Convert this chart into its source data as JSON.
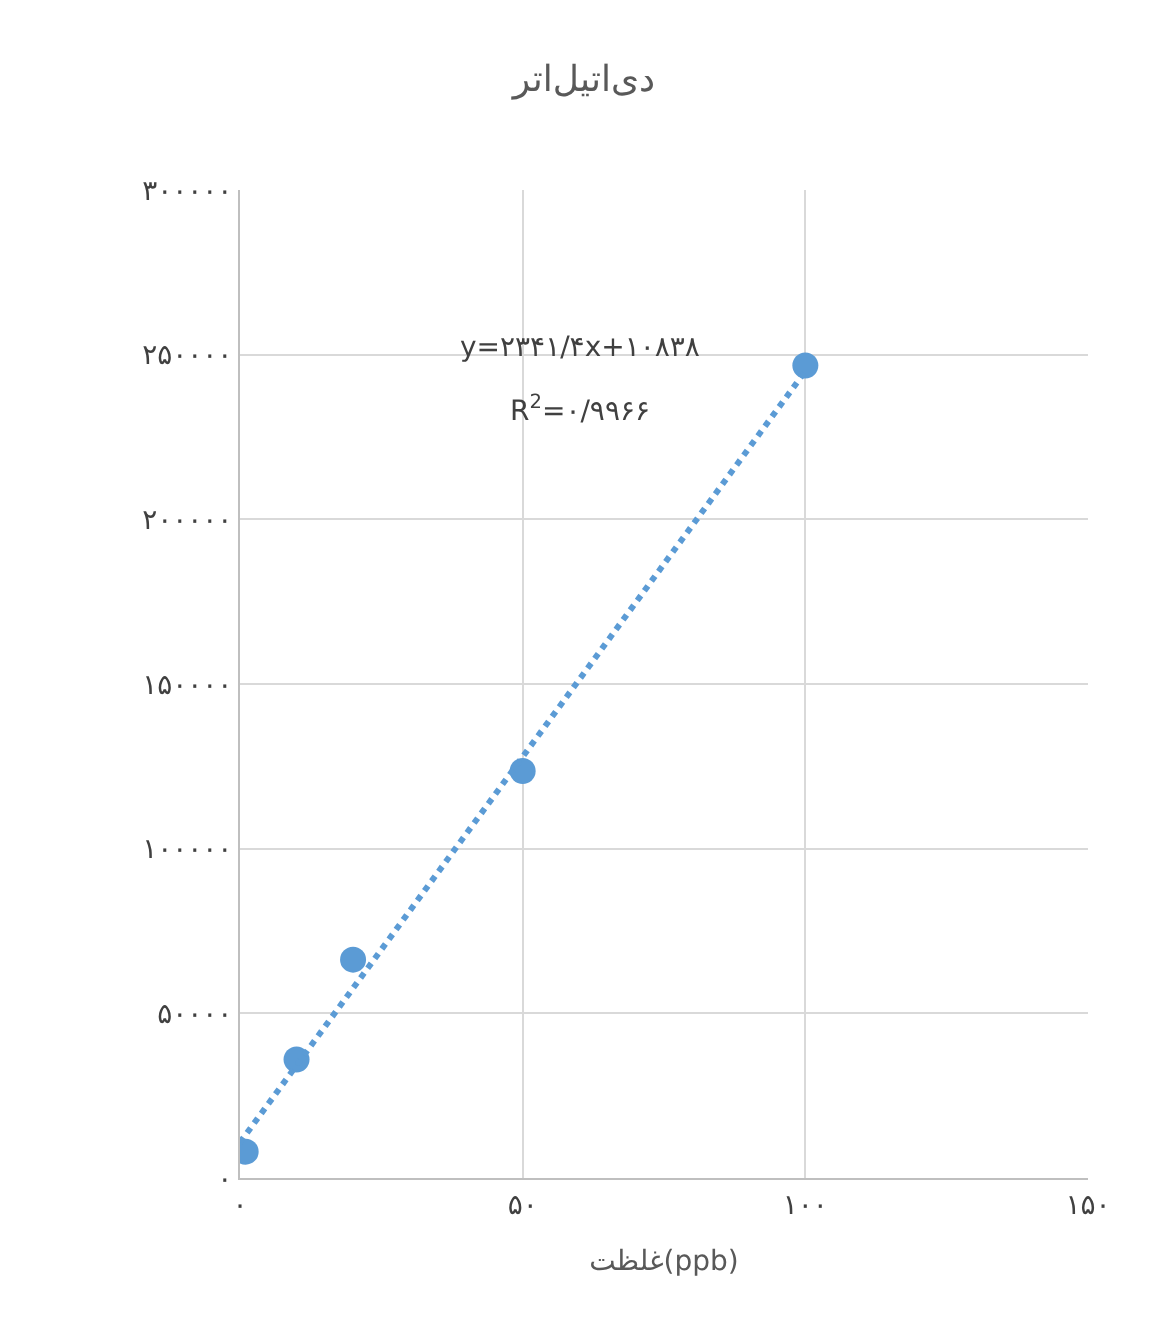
{
  "chart_data": {
    "type": "scatter",
    "title": "دی‌اتیل‌اتر",
    "xlabel": "غلظت(ppb)",
    "xlim": [
      0,
      150
    ],
    "xticks": [
      {
        "value": 0,
        "label": "۰"
      },
      {
        "value": 50,
        "label": "۵۰"
      },
      {
        "value": 100,
        "label": "۱۰۰"
      },
      {
        "value": 150,
        "label": "۱۵۰"
      }
    ],
    "ylim": [
      0,
      300000
    ],
    "yticks": [
      {
        "value": 0,
        "label": "۰"
      },
      {
        "value": 50000,
        "label": "۵۰۰۰۰"
      },
      {
        "value": 100000,
        "label": "۱۰۰۰۰۰"
      },
      {
        "value": 150000,
        "label": "۱۵۰۰۰۰"
      },
      {
        "value": 200000,
        "label": "۲۰۰۰۰۰"
      },
      {
        "value": 250000,
        "label": "۲۵۰۰۰۰"
      },
      {
        "value": 300000,
        "label": "۳۰۰۰۰۰"
      }
    ],
    "grid": true,
    "marker": "circle",
    "series": [
      {
        "color": "#5b9bd5",
        "x": [
          1,
          10,
          20,
          50,
          100
        ],
        "values": [
          8000,
          36000,
          66300,
          123600,
          246700
        ]
      },
      {
        "type": "line",
        "color": "#5b9bd5",
        "line_style": "dotted",
        "marker": "none",
        "x": [
          0,
          100
        ],
        "values": [
          10800,
          245000
        ]
      }
    ],
    "annotations": [
      "y=۲۳۴۱/۴x+۱۰۸۳۸",
      "R$^{2}$=۰/۹۹۶۶"
    ]
  }
}
